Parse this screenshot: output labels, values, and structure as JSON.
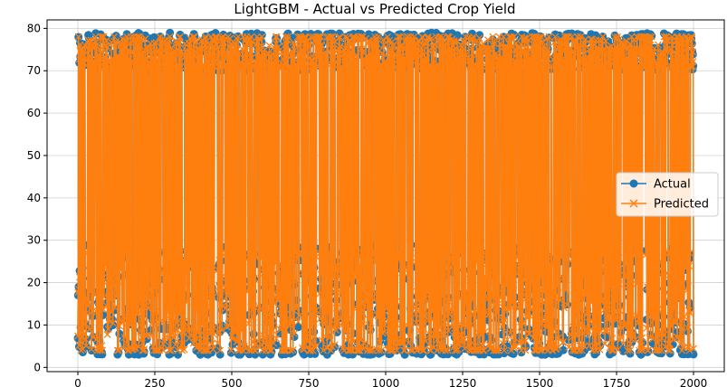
{
  "chart_data": {
    "type": "line",
    "title": "LightGBM - Actual vs Predicted Crop Yield",
    "xlabel": "",
    "ylabel": "",
    "xlim": [
      -100,
      2100
    ],
    "ylim": [
      -1,
      82
    ],
    "x_ticks": [
      0,
      250,
      500,
      750,
      1000,
      1250,
      1500,
      1750,
      2000
    ],
    "y_ticks": [
      0,
      10,
      20,
      30,
      40,
      50,
      60,
      70,
      80
    ],
    "grid": true,
    "legend": "center-right",
    "sample_count": 2001,
    "series": [
      {
        "name": "Actual",
        "color": "#1f77b4",
        "marker": "o",
        "approx_distribution": {
          "low_band": [
            3,
            29
          ],
          "high_band": [
            70,
            79
          ],
          "high_fraction": 0.5
        }
      },
      {
        "name": "Predicted",
        "color": "#ff7f0e",
        "marker": "x",
        "approx_distribution": {
          "low_band": [
            4,
            27
          ],
          "high_band": [
            71,
            78
          ],
          "high_fraction": 0.5
        }
      }
    ]
  }
}
